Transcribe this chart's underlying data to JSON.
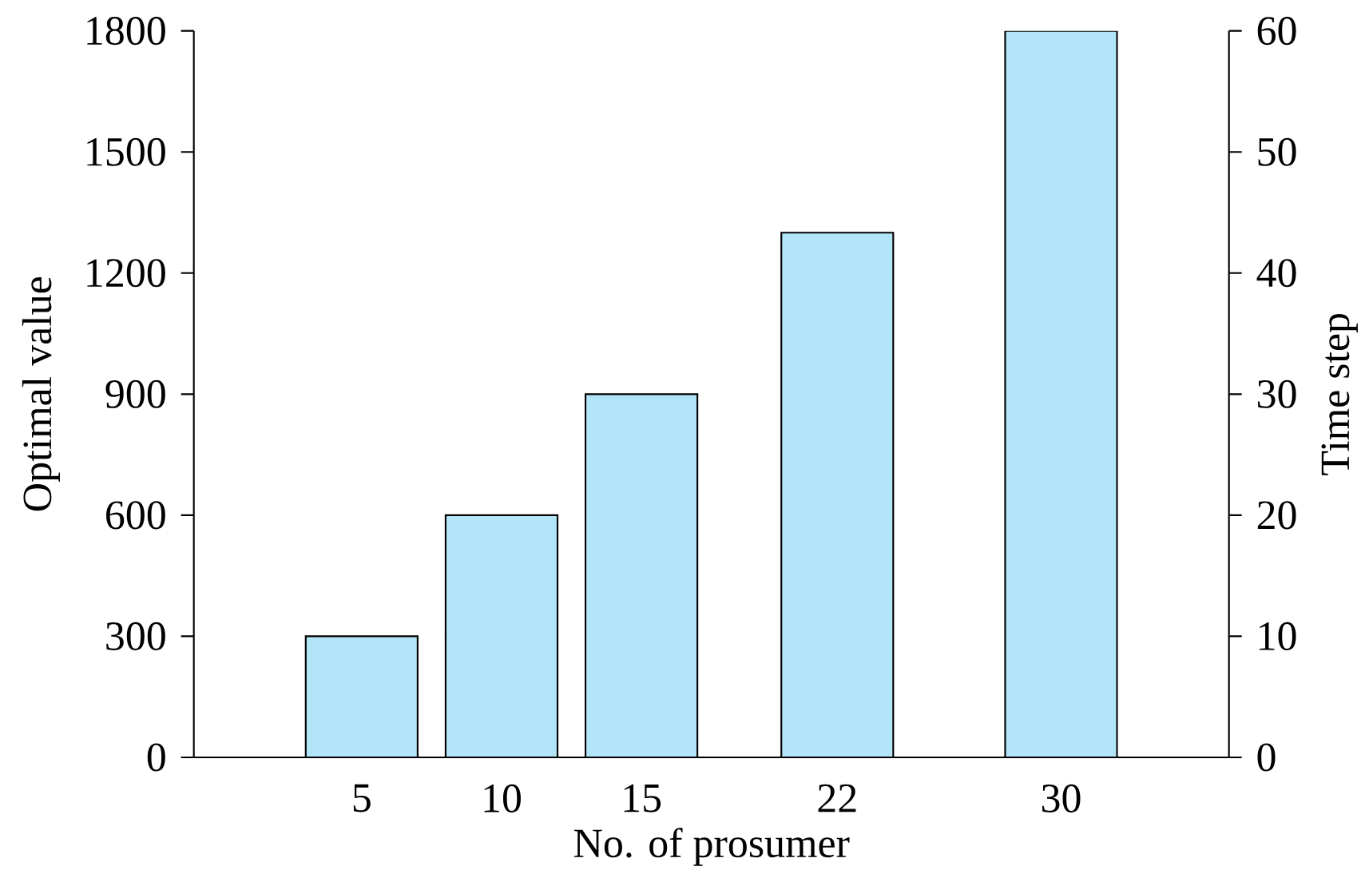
{
  "chart_data": {
    "type": "bar",
    "x": [
      5,
      10,
      15,
      22,
      30
    ],
    "values": [
      300,
      600,
      900,
      1300,
      1800
    ],
    "color": "#b3e5f8",
    "xlabel": "No. of prosumer",
    "ylabel": "Optimal value",
    "y2label": "Time step",
    "xlim": [
      -1,
      36
    ],
    "xticks": [
      5,
      10,
      15,
      22,
      30
    ],
    "ylim": [
      0,
      1800
    ],
    "yticks": [
      0,
      300,
      600,
      900,
      1200,
      1500,
      1800
    ],
    "y2lim": [
      0,
      60
    ],
    "y2ticks": [
      0,
      10,
      20,
      30,
      40,
      50,
      60
    ]
  }
}
